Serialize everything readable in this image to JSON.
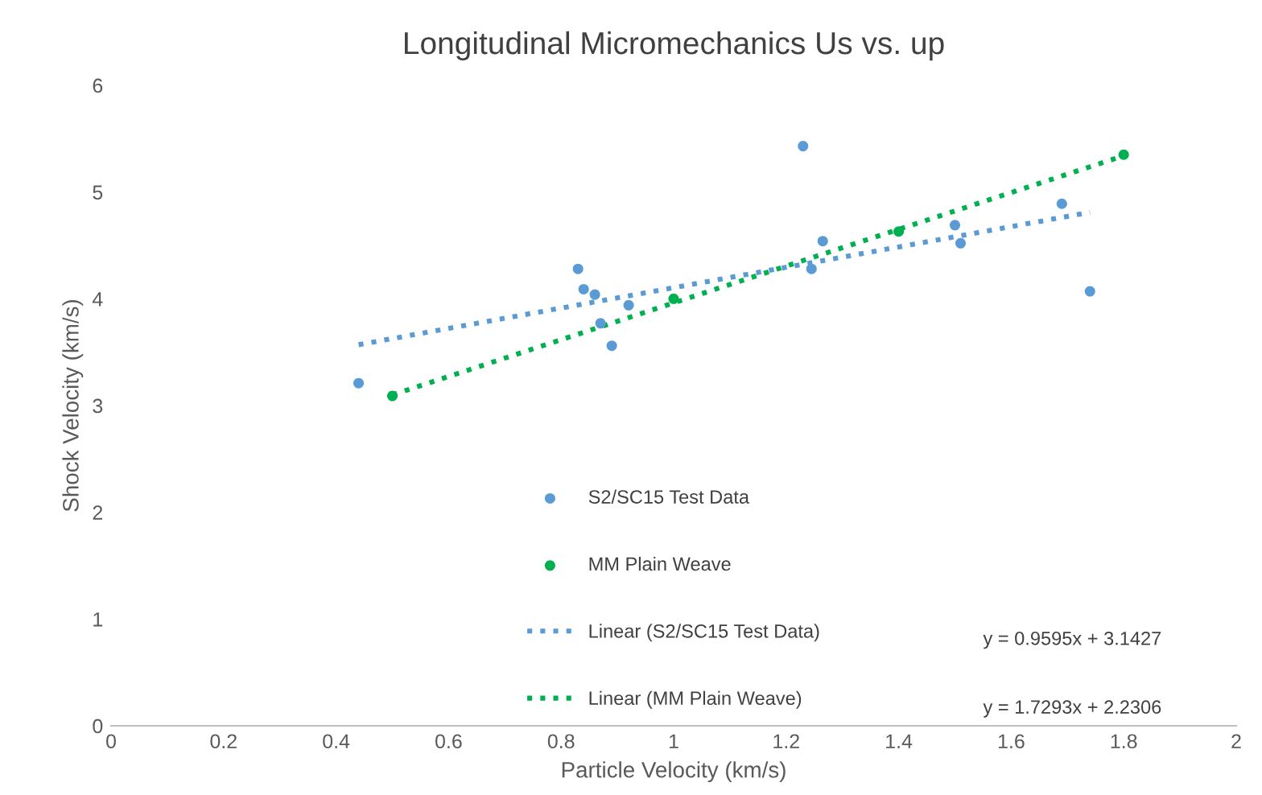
{
  "chart_data": {
    "type": "scatter",
    "title": "Longitudinal Micromechanics Us vs. up",
    "xlabel": "Particle Velocity (km/s)",
    "ylabel": "Shock Velocity (km/s)",
    "xlim": [
      0,
      2
    ],
    "ylim": [
      0,
      6
    ],
    "xticks": [
      0,
      0.2,
      0.4,
      0.6,
      0.8,
      1,
      1.2,
      1.4,
      1.6,
      1.8,
      2
    ],
    "yticks": [
      0,
      1,
      2,
      3,
      4,
      5,
      6
    ],
    "grid": false,
    "legend": "bottom",
    "annotations": [
      "y = 0.9595x + 3.1427",
      "y = 1.7293x + 2.2306"
    ],
    "series": [
      {
        "name": "S2/SC15 Test Data",
        "marker": "circle",
        "color": "#5b9bd5",
        "x": [
          0.44,
          0.83,
          0.84,
          0.86,
          0.87,
          0.89,
          0.92,
          1.23,
          1.265,
          1.245,
          1.5,
          1.51,
          1.69,
          1.74
        ],
        "values": [
          3.21,
          4.28,
          4.09,
          4.04,
          3.77,
          3.56,
          3.94,
          5.43,
          4.54,
          4.28,
          4.69,
          4.52,
          4.89,
          4.07
        ]
      },
      {
        "name": "MM Plain Weave",
        "marker": "circle",
        "color": "#00b050",
        "x": [
          0.5,
          1.0,
          1.4,
          1.8
        ],
        "values": [
          3.09,
          4.0,
          4.63,
          5.35
        ]
      },
      {
        "name": "Linear (S2/SC15 Test Data)",
        "type": "line",
        "marker": "none",
        "line_style": "dotted",
        "color": "#5b9bd5",
        "x": [
          0.44,
          1.74
        ],
        "values": [
          3.57,
          4.81
        ]
      },
      {
        "name": "Linear (MM Plain Weave)",
        "type": "line",
        "marker": "none",
        "line_style": "dotted",
        "color": "#00b050",
        "x": [
          0.5,
          1.8
        ],
        "values": [
          3.1,
          5.34
        ]
      }
    ]
  }
}
